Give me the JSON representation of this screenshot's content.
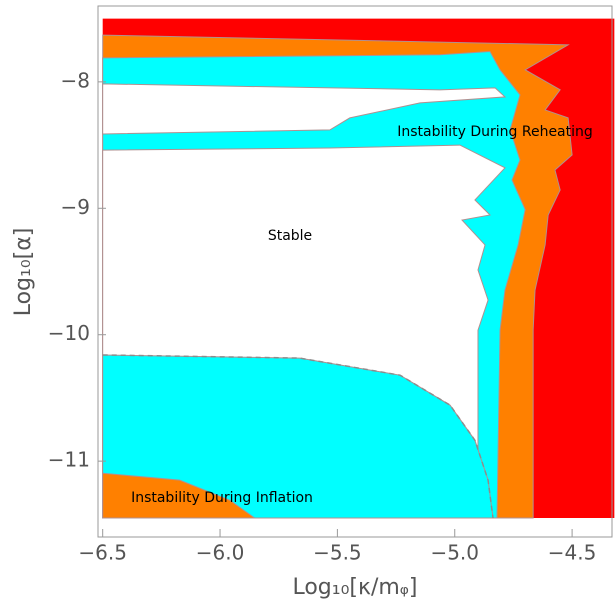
{
  "chart_data": {
    "type": "region",
    "xlabel": "Log₁₀[κ/mᵩ]",
    "ylabel": "Log₁₀[α]",
    "xlim": [
      -6.52,
      -4.33
    ],
    "ylim": [
      -11.6,
      -7.4
    ],
    "xticks": [
      {
        "value": -6.5,
        "label": "−6.5"
      },
      {
        "value": -6,
        "label": "−6.0"
      },
      {
        "value": -5.5,
        "label": "−5.5"
      },
      {
        "value": -5,
        "label": "−5.0"
      },
      {
        "value": -4.5,
        "label": "−4.5"
      }
    ],
    "yticks": [
      {
        "value": -8,
        "label": "−8"
      },
      {
        "value": -9,
        "label": "−9"
      },
      {
        "value": -10,
        "label": "−10"
      },
      {
        "value": -11,
        "label": "−11"
      }
    ],
    "regions": [
      {
        "color": "#ff0000",
        "x": [
          -6.5,
          -4.32,
          -4.32,
          -6.5
        ],
        "y": [
          -7.5,
          -7.5,
          -11.45,
          -11.45
        ]
      },
      {
        "color": "#ff8000",
        "x": [
          -6.5,
          -4.517,
          -4.7,
          -4.551,
          -4.615,
          -4.517,
          -4.5,
          -4.573,
          -4.551,
          -4.602,
          -4.615,
          -4.658,
          -4.666,
          -4.666,
          -6.5
        ],
        "y": [
          -7.63,
          -7.707,
          -7.905,
          -8.063,
          -8.222,
          -8.285,
          -8.578,
          -8.697,
          -8.855,
          -9.053,
          -9.29,
          -9.647,
          -9.964,
          -11.45,
          -11.45
        ]
      },
      {
        "color": "#00ffff",
        "x": [
          -6.5,
          -5.063,
          -4.85,
          -4.807,
          -4.722,
          -4.764,
          -4.722,
          -4.756,
          -4.7,
          -4.73,
          -4.786,
          -4.807,
          -4.82,
          -6.5
        ],
        "y": [
          -7.81,
          -7.786,
          -7.76,
          -7.905,
          -8.103,
          -8.38,
          -8.618,
          -8.776,
          -9.01,
          -9.29,
          -9.647,
          -9.964,
          -11.45,
          -11.45
        ]
      },
      {
        "color": "#ffffff",
        "x": [
          -6.5,
          -5.063,
          -4.828,
          -4.786,
          -5.148,
          -5.447,
          -5.532,
          -6.5
        ],
        "y": [
          -8.016,
          -8.063,
          -8.048,
          -8.119,
          -8.166,
          -8.285,
          -8.38,
          -8.412
        ]
      },
      {
        "color": "#ffffff",
        "x": [
          -6.5,
          -5.532,
          -4.978,
          -4.786,
          -4.914,
          -4.85,
          -4.969,
          -4.871,
          -4.901,
          -4.858,
          -4.901,
          -4.901,
          -4.901,
          -6.5
        ],
        "y": [
          -8.54,
          -8.523,
          -8.5,
          -8.68,
          -8.934,
          -9.053,
          -9.093,
          -9.29,
          -9.488,
          -9.726,
          -9.964,
          -10.835,
          -11.45,
          -11.45
        ]
      },
      {
        "color": "#00ffff",
        "x": [
          -6.5,
          -5.66,
          -5.233,
          -5.02,
          -4.914,
          -4.858,
          -4.837,
          -6.5
        ],
        "y": [
          -10.16,
          -10.185,
          -10.32,
          -10.557,
          -10.835,
          -11.15,
          -11.45,
          -11.45
        ]
      },
      {
        "color": "#ff8000",
        "x": [
          -6.5,
          -6.172,
          -5.958,
          -5.852,
          -6.5
        ],
        "y": [
          -11.096,
          -11.15,
          -11.31,
          -11.45,
          -11.45
        ]
      }
    ],
    "lines": [
      {
        "color": "#8c8c8c",
        "dash": true,
        "x": [
          -6.5,
          -5.66,
          -5.233,
          -5.02,
          -4.914,
          -4.858,
          -4.837
        ],
        "y": [
          -10.16,
          -10.185,
          -10.32,
          -10.557,
          -10.835,
          -11.15,
          -11.45
        ]
      }
    ],
    "annotations": [
      "Instability During Reheating",
      "Stable",
      "Instability During Inflation"
    ]
  }
}
